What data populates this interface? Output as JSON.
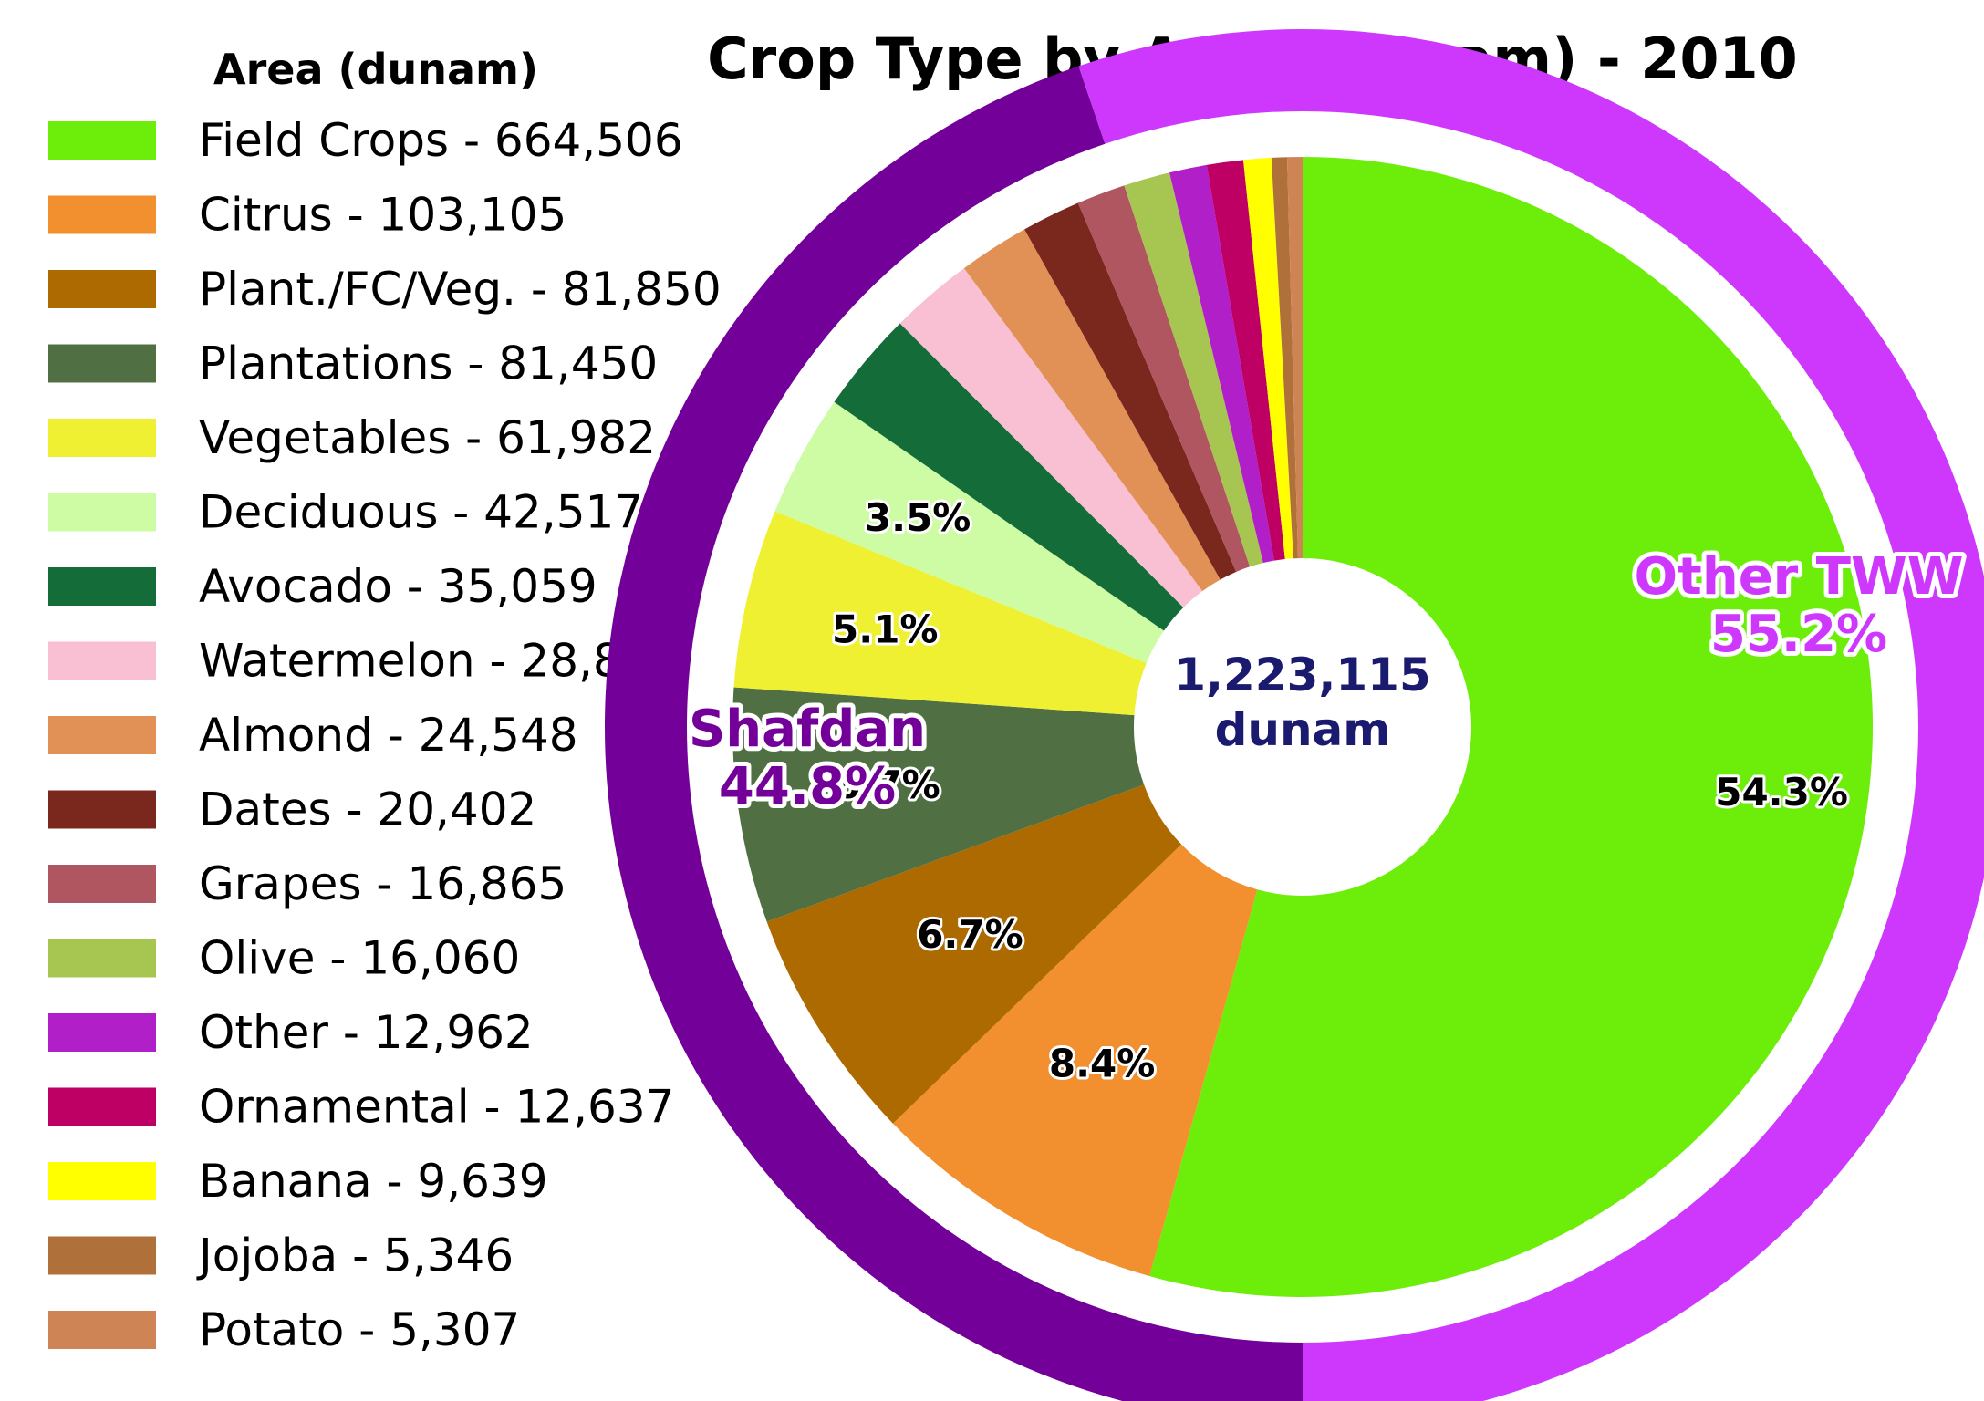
{
  "chart_data": {
    "type": "pie",
    "title": "Crop Type by Area (dunam) - 2010",
    "legend_title": "Area (dunam)",
    "legend_position": "left",
    "center_label": [
      "1,223,115",
      "dunam"
    ],
    "inner": {
      "start_angle_deg": 90,
      "direction": "clockwise",
      "slices": [
        {
          "name": "Field Crops",
          "legend": "Field Crops - 664,506",
          "value": 664506,
          "color": "#6CEE0A",
          "label": "54.3%"
        },
        {
          "name": "Citrus",
          "legend": "Citrus - 103,105",
          "value": 103105,
          "color": "#F28F2F",
          "label": "8.4%"
        },
        {
          "name": "Plant./FC/Veg.",
          "legend": "Plant./FC/Veg. - 81,850",
          "value": 81850,
          "color": "#AD6A00",
          "label": "6.7%"
        },
        {
          "name": "Plantations",
          "legend": "Plantations - 81,450",
          "value": 81450,
          "color": "#507043",
          "label": "6.7%"
        },
        {
          "name": "Vegetables",
          "legend": "Vegetables - 61,982",
          "value": 61982,
          "color": "#F0F032",
          "label": "5.1%"
        },
        {
          "name": "Deciduous",
          "legend": "Deciduous - 42,517",
          "value": 42517,
          "color": "#CDFCA5",
          "label": "3.5%"
        },
        {
          "name": "Avocado",
          "legend": "Avocado - 35,059",
          "value": 35059,
          "color": "#146C38",
          "label": ""
        },
        {
          "name": "Watermelon",
          "legend": "Watermelon - 28,880",
          "value": 28880,
          "color": "#F9BFD2",
          "label": ""
        },
        {
          "name": "Almond",
          "legend": "Almond - 24,548",
          "value": 24548,
          "color": "#E19156",
          "label": ""
        },
        {
          "name": "Dates",
          "legend": "Dates - 20,402",
          "value": 20402,
          "color": "#7A271E",
          "label": ""
        },
        {
          "name": "Grapes",
          "legend": "Grapes - 16,865",
          "value": 16865,
          "color": "#B05660",
          "label": ""
        },
        {
          "name": "Olive",
          "legend": "Olive - 16,060",
          "value": 16060,
          "color": "#A7C651",
          "label": ""
        },
        {
          "name": "Other",
          "legend": "Other - 12,962",
          "value": 12962,
          "color": "#B01FC7",
          "label": ""
        },
        {
          "name": "Ornamental",
          "legend": "Ornamental - 12,637",
          "value": 12637,
          "color": "#BE0064",
          "label": ""
        },
        {
          "name": "Banana",
          "legend": "Banana - 9,639",
          "value": 9639,
          "color": "#FFFF00",
          "label": ""
        },
        {
          "name": "Jojoba",
          "legend": "Jojoba - 5,346",
          "value": 5346,
          "color": "#B0703A",
          "label": ""
        },
        {
          "name": "Potato",
          "legend": "Potato - 5,307",
          "value": 5307,
          "color": "#CF8456",
          "label": ""
        }
      ]
    },
    "outer": {
      "start_angle_deg": 180,
      "direction": "clockwise",
      "segments": [
        {
          "name": "Shafdan",
          "value": 44.8,
          "label": "Shafdan",
          "pct": "44.8%",
          "color": "#720099",
          "label_color": "#720099"
        },
        {
          "name": "Other TWW",
          "value": 55.2,
          "label": "Other TWW",
          "pct": "55.2%",
          "color": "#CD38FC",
          "label_color": "#CD38FC"
        }
      ]
    }
  }
}
